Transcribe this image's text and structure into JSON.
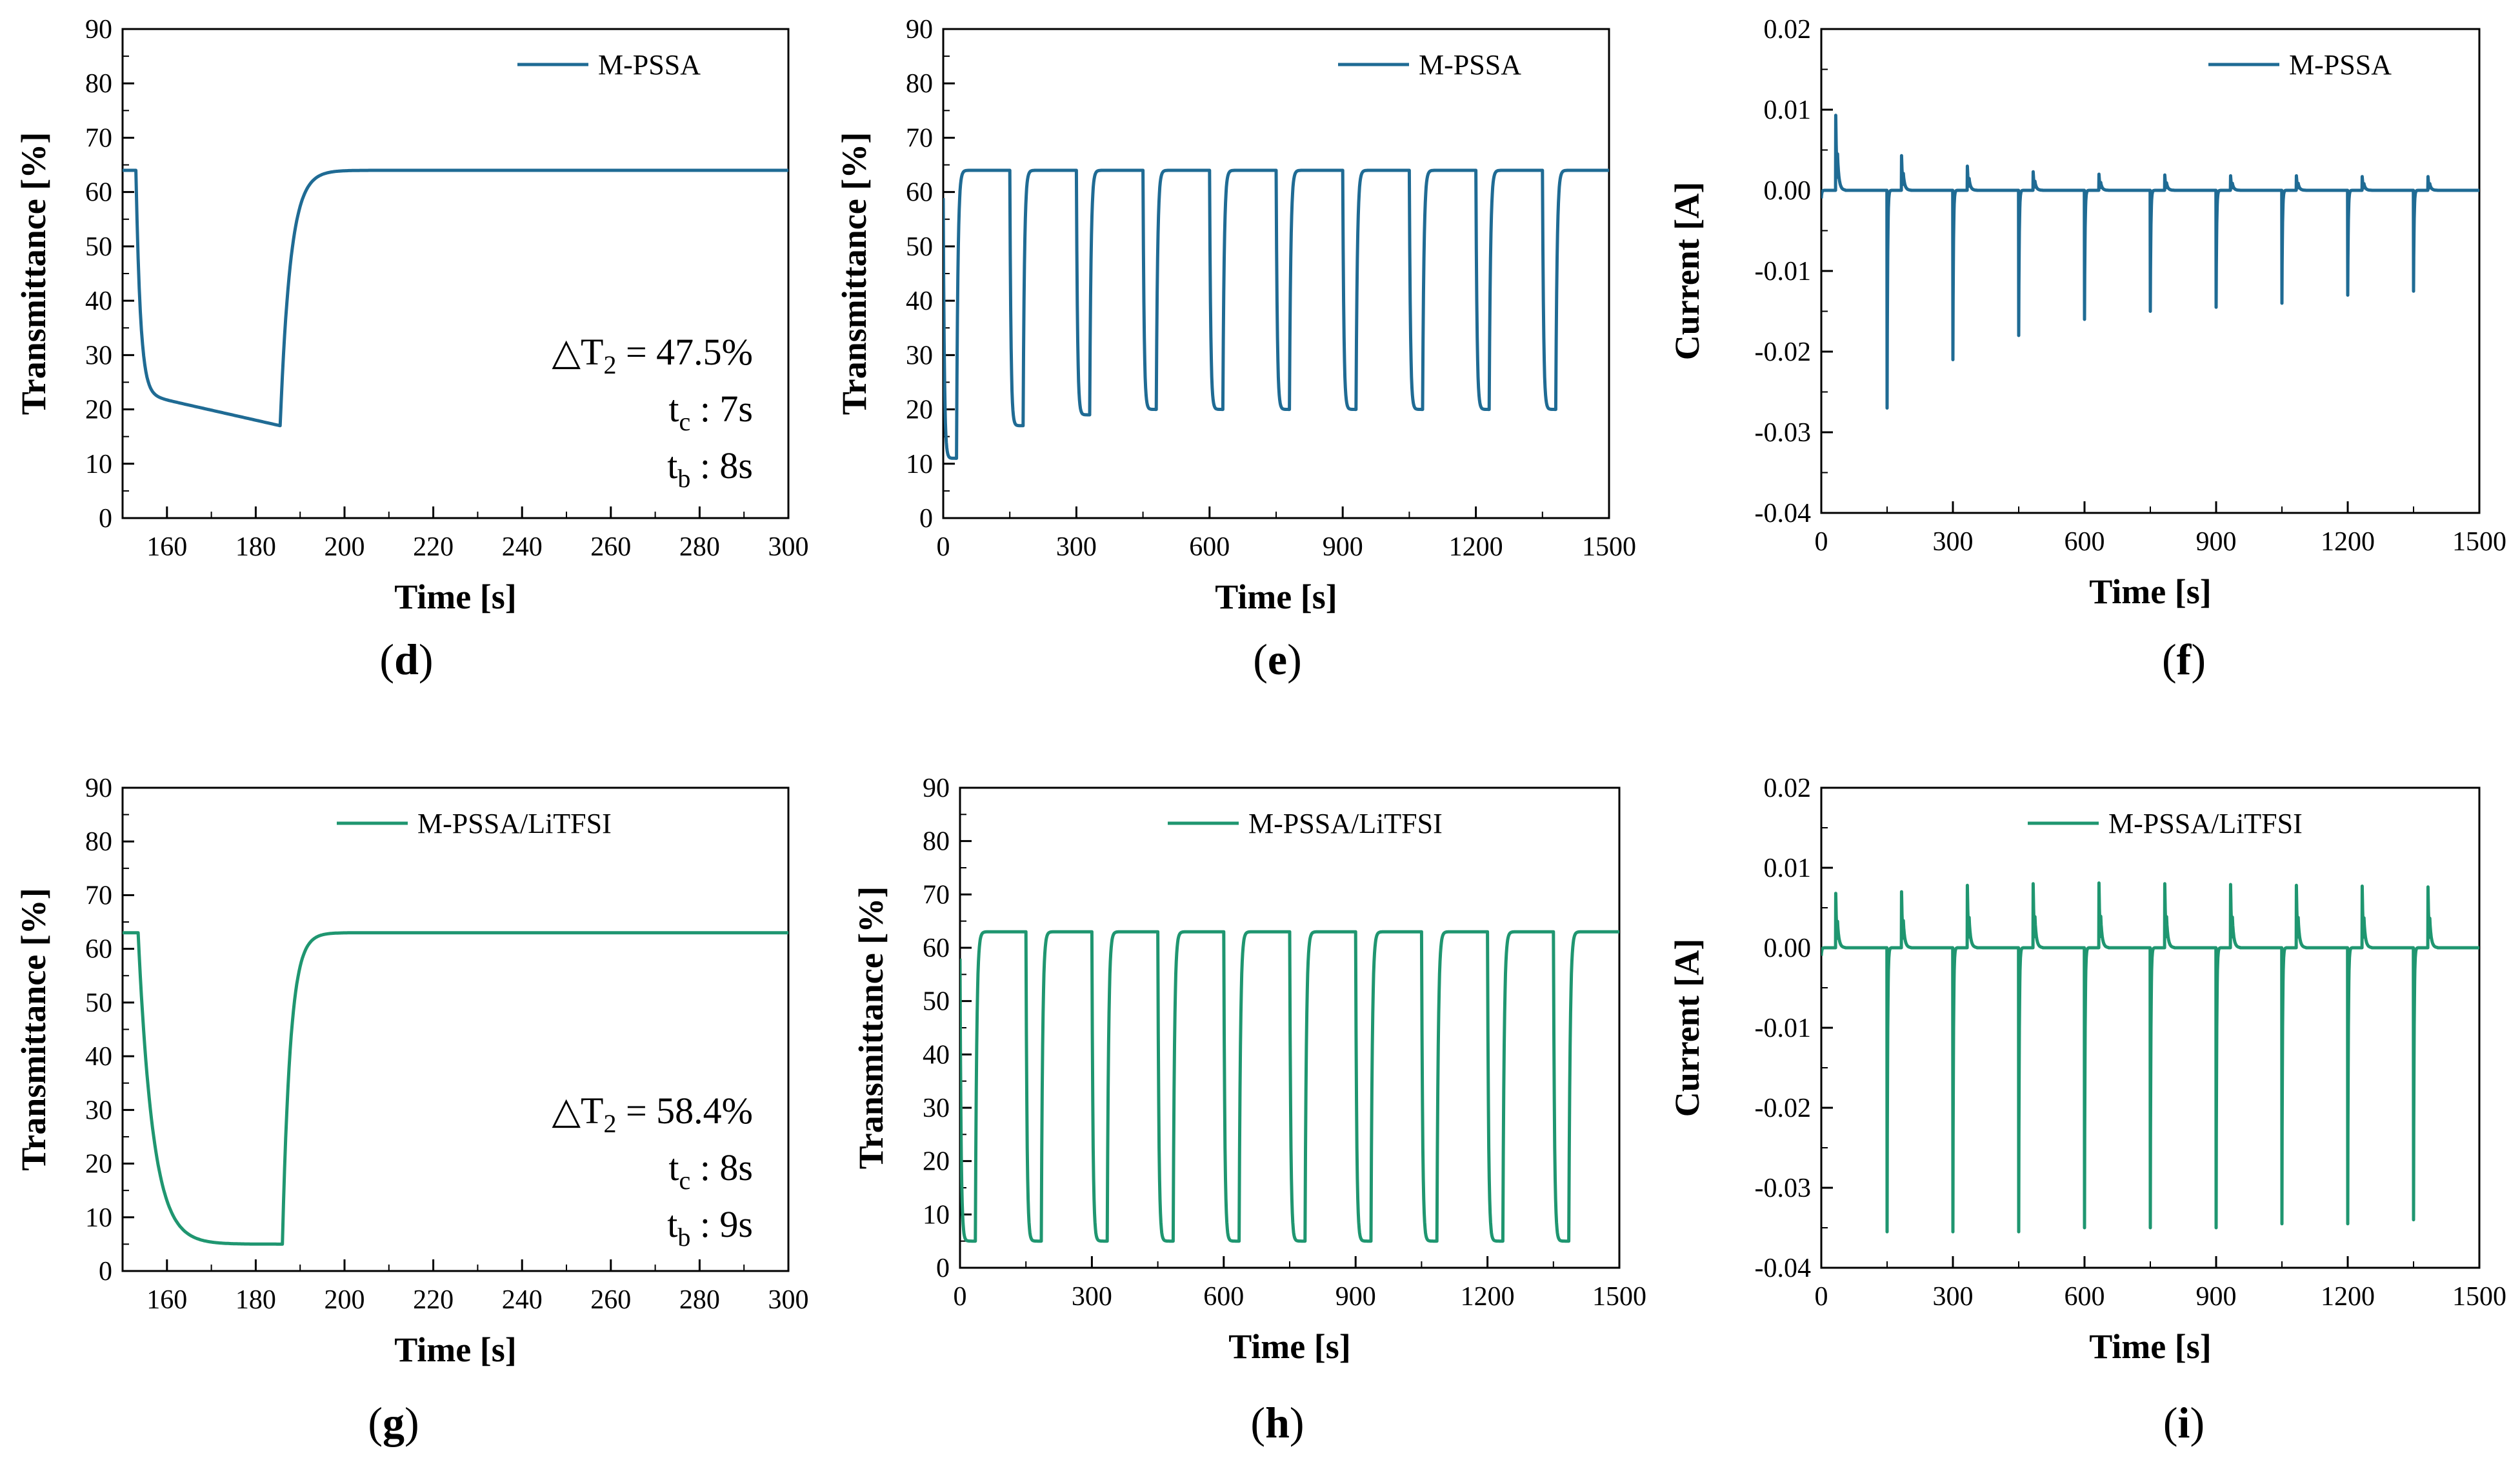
{
  "colors": {
    "blue": "#1f6b94",
    "green": "#1f9670"
  },
  "panels": [
    {
      "id": "d",
      "label": "d",
      "color": "blue",
      "kind": "single",
      "chart_data": {
        "type": "line",
        "legend": "M-PSSA",
        "xlabel": "Time [s]",
        "ylabel": "Transmittance [%]",
        "xlim": [
          150,
          300
        ],
        "ylim": [
          0,
          90
        ],
        "xticks": [
          160,
          180,
          200,
          220,
          240,
          260,
          280,
          300
        ],
        "yticks": [
          0,
          10,
          20,
          30,
          40,
          50,
          60,
          70,
          80,
          90
        ],
        "curve": {
          "t_start": 150,
          "t_color": 153,
          "t_bleach": 185.5,
          "t_end": 300,
          "high": 64,
          "trough_start": 23,
          "trough_end": 17,
          "tau_color": 1.0,
          "tau_bleach": 2.3
        },
        "annotations": {
          "delta": "47.5%",
          "tc": "7s",
          "tb": "8s"
        }
      }
    },
    {
      "id": "e",
      "label": "e",
      "color": "blue",
      "kind": "cycles",
      "chart_data": {
        "type": "line",
        "legend": "M-PSSA",
        "xlabel": "Time [s]",
        "ylabel": "Transmittance [%]",
        "xlim": [
          0,
          1500
        ],
        "ylim": [
          0,
          90
        ],
        "xticks": [
          0,
          300,
          600,
          900,
          1200,
          1500
        ],
        "yticks": [
          0,
          10,
          20,
          30,
          40,
          50,
          60,
          70,
          80,
          90
        ],
        "cycles": {
          "period": 150,
          "offset": 0,
          "n": 10,
          "bleach_delay": 30,
          "high": 64,
          "lows": [
            11,
            17,
            19,
            20,
            20,
            20,
            20,
            20,
            20,
            20
          ]
        }
      }
    },
    {
      "id": "f",
      "label": "f",
      "color": "blue",
      "kind": "current",
      "chart_data": {
        "type": "line",
        "legend": "M-PSSA",
        "xlabel": "Time [s]",
        "ylabel": "Current [A]",
        "xlim": [
          0,
          1500
        ],
        "ylim": [
          -0.04,
          0.02
        ],
        "xticks": [
          0,
          300,
          600,
          900,
          1200,
          1500
        ],
        "yticks": [
          -0.04,
          -0.03,
          -0.02,
          -0.01,
          0.0,
          0.01,
          0.02
        ],
        "yfmt": 2,
        "current": {
          "period": 150,
          "n": 10,
          "color_times": [
            0,
            150,
            300,
            450,
            600,
            750,
            900,
            1050,
            1200,
            1350
          ],
          "neg_peaks": [
            -0.001,
            -0.027,
            -0.021,
            -0.018,
            -0.016,
            -0.015,
            -0.0145,
            -0.014,
            -0.013,
            -0.0125
          ],
          "pos_peaks": [
            0.0093,
            0.0043,
            0.003,
            0.0023,
            0.002,
            0.0019,
            0.0018,
            0.0018,
            0.0017,
            0.0017
          ]
        }
      }
    },
    {
      "id": "g",
      "label": "g",
      "color": "green",
      "kind": "single",
      "chart_data": {
        "type": "line",
        "legend": "M-PSSA/LiTFSI",
        "xlabel": "Time [s]",
        "ylabel": "Transmittance [%]",
        "xlim": [
          150,
          300
        ],
        "ylim": [
          0,
          90
        ],
        "xticks": [
          160,
          180,
          200,
          220,
          240,
          260,
          280,
          300
        ],
        "yticks": [
          0,
          10,
          20,
          30,
          40,
          50,
          60,
          70,
          80,
          90
        ],
        "curve": {
          "t_start": 150,
          "t_color": 153.5,
          "t_bleach": 186,
          "t_end": 300,
          "high": 63,
          "trough_start": 5,
          "trough_end": 5,
          "tau_color": 3.3,
          "tau_bleach": 1.8
        },
        "annotations": {
          "delta": "58.4%",
          "tc": "8s",
          "tb": "9s"
        }
      }
    },
    {
      "id": "h",
      "label": "h",
      "color": "green",
      "kind": "cycles",
      "chart_data": {
        "type": "line",
        "legend": "M-PSSA/LiTFSI",
        "xlabel": "Time [s]",
        "ylabel": "Transmittance [%]",
        "xlim": [
          0,
          1500
        ],
        "ylim": [
          0,
          90
        ],
        "xticks": [
          0,
          300,
          600,
          900,
          1200,
          1500
        ],
        "yticks": [
          0,
          10,
          20,
          30,
          40,
          50,
          60,
          70,
          80,
          90
        ],
        "cycles": {
          "period": 150,
          "offset": 0,
          "n": 10,
          "bleach_delay": 35,
          "high": 63,
          "lows": [
            5,
            5,
            5,
            5,
            5,
            5,
            5,
            5,
            5,
            5
          ]
        }
      }
    },
    {
      "id": "i",
      "label": "i",
      "color": "green",
      "kind": "current",
      "chart_data": {
        "type": "line",
        "legend": "M-PSSA/LiTFSI",
        "xlabel": "Time [s]",
        "ylabel": "Current [A]",
        "xlim": [
          0,
          1500
        ],
        "ylim": [
          -0.04,
          0.02
        ],
        "xticks": [
          0,
          300,
          600,
          900,
          1200,
          1500
        ],
        "yticks": [
          -0.04,
          -0.03,
          -0.02,
          -0.01,
          0.0,
          0.01,
          0.02
        ],
        "yfmt": 2,
        "current": {
          "period": 150,
          "n": 10,
          "color_times": [
            0,
            150,
            300,
            450,
            600,
            750,
            900,
            1050,
            1200,
            1350
          ],
          "neg_peaks": [
            -0.001,
            -0.0355,
            -0.0355,
            -0.0355,
            -0.035,
            -0.035,
            -0.035,
            -0.0345,
            -0.0345,
            -0.034
          ],
          "pos_peaks": [
            0.0068,
            0.007,
            0.0078,
            0.008,
            0.0081,
            0.008,
            0.0079,
            0.0078,
            0.0077,
            0.0076
          ]
        }
      }
    }
  ]
}
